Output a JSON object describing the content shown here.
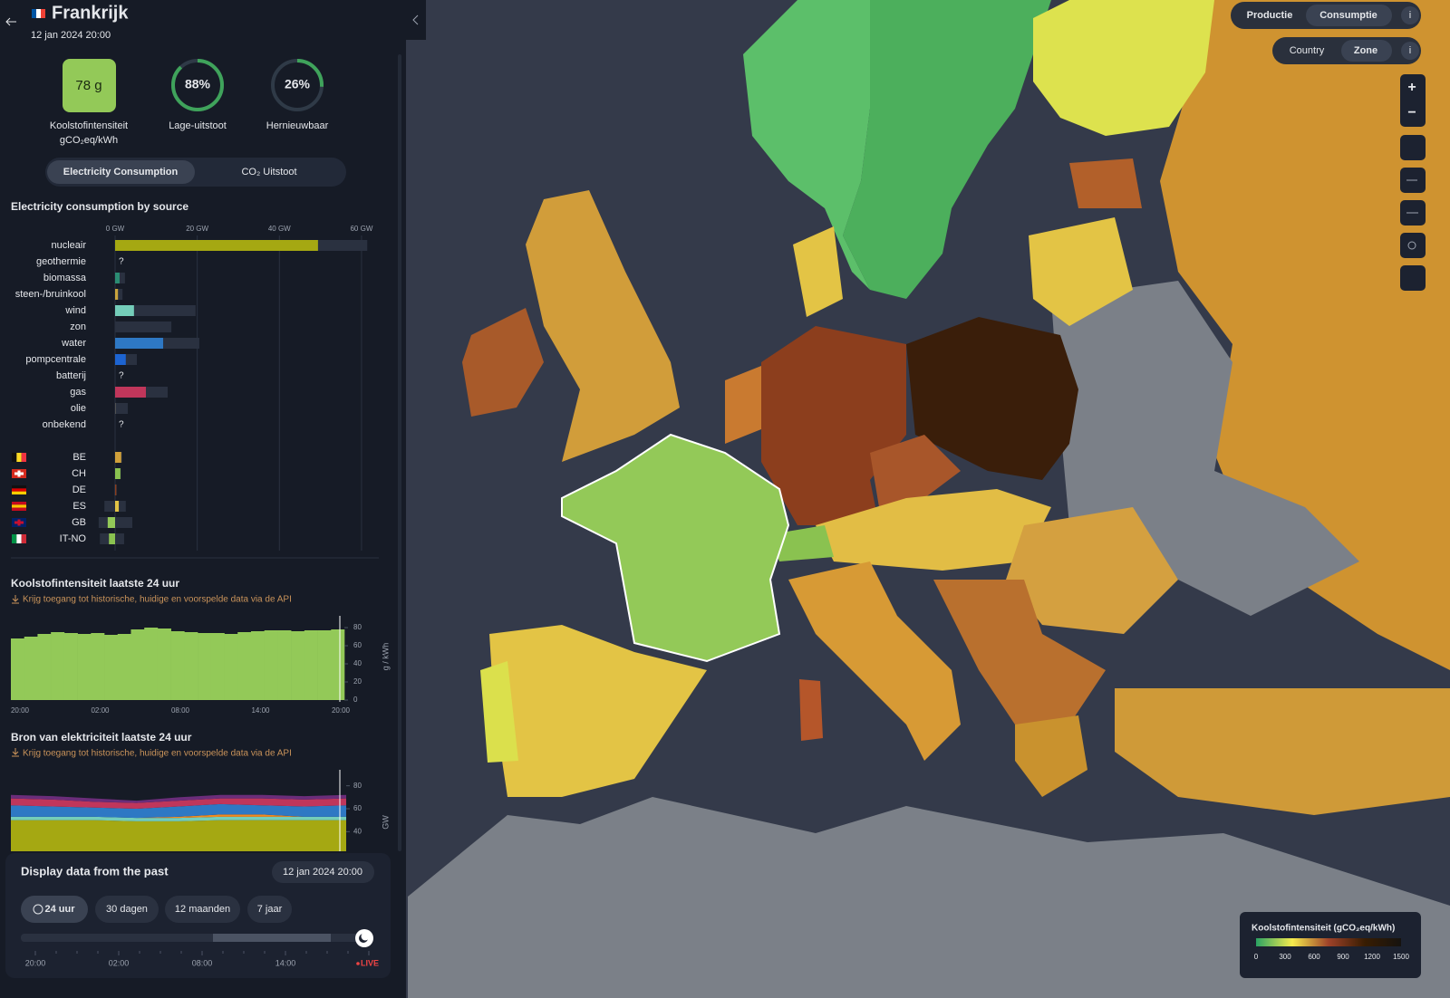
{
  "header": {
    "title": "Frankrijk",
    "datetime": "12 jan 2024 20:00"
  },
  "stats": {
    "intensity": {
      "value_label": "78 g",
      "label": "Koolstofintensiteit",
      "unit": "gCO₂eq/kWh",
      "color": "#93c958"
    },
    "rings": [
      {
        "value": 88,
        "value_label": "88%",
        "label": "Lage-uitstoot"
      },
      {
        "value": 26,
        "value_label": "26%",
        "label": "Hernieuwbaar"
      }
    ],
    "ring_color": "#3fa35b"
  },
  "tabs": [
    "Electricity Consumption",
    "CO₂ Uitstoot"
  ],
  "active_tab": 0,
  "source_chart": {
    "type": "hbar",
    "title": "Electricity consumption by source",
    "xlim": [
      0,
      62
    ],
    "xticks": [
      {
        "value": 0,
        "label": "0 GW"
      },
      {
        "value": 20,
        "label": "20 GW"
      },
      {
        "value": 40,
        "label": "40 GW"
      },
      {
        "value": 60,
        "label": "60 GW"
      }
    ],
    "categories": [
      "nucleair",
      "geothermie",
      "biomassa",
      "steen-/bruinkool",
      "wind",
      "zon",
      "water",
      "pompcentrale",
      "batterij",
      "gas",
      "olie",
      "onbekend"
    ],
    "values": [
      49.4,
      null,
      1.1,
      0.7,
      4.6,
      0,
      11.7,
      2.6,
      null,
      7.5,
      0.2,
      null
    ],
    "capacity": [
      61.4,
      null,
      2.4,
      1.8,
      19.6,
      13.7,
      20.5,
      5.3,
      null,
      12.8,
      3.1,
      null
    ],
    "value_labels": [
      null,
      "?",
      null,
      null,
      null,
      null,
      null,
      null,
      "?",
      null,
      null,
      "?"
    ],
    "colors": [
      "#a5a812",
      "#8a6d3b",
      "#2b8c73",
      "#c9a33d",
      "#74cdb9",
      "#f5b700",
      "#2e78c4",
      "#1d64d1",
      "#777777",
      "#c0365b",
      "#555555",
      "#888888"
    ],
    "exchanges": {
      "zones": [
        "BE",
        "CH",
        "DE",
        "ES",
        "GB",
        "IT-NO"
      ],
      "values": [
        1.5,
        1.3,
        0.3,
        0.9,
        -1.8,
        -1.5
      ],
      "capacity": [
        [
          0,
          1.7
        ],
        [
          0,
          1.4
        ],
        [
          -0.2,
          0.4
        ],
        [
          -2.6,
          2.6
        ],
        [
          -4,
          4.2
        ],
        [
          -3.7,
          2.2
        ]
      ],
      "colors": [
        "#d0a03a",
        "#8ac250",
        "#8c3e1d",
        "#e3c445",
        "#93c958",
        "#8ac250"
      ],
      "flags": [
        {
          "dir": "v",
          "colors": [
            "#111111",
            "#fdda24",
            "#ef3340"
          ]
        },
        {
          "dir": "cross",
          "colors": [
            "#d52b1e",
            "#ffffff"
          ]
        },
        {
          "dir": "h",
          "colors": [
            "#111111",
            "#dd0000",
            "#ffce00"
          ]
        },
        {
          "dir": "h",
          "colors": [
            "#c60b1e",
            "#ffc400",
            "#c60b1e"
          ]
        },
        {
          "dir": "cross",
          "colors": [
            "#012169",
            "#c8102e"
          ]
        },
        {
          "dir": "v",
          "colors": [
            "#009246",
            "#ffffff",
            "#ce2b37"
          ]
        }
      ]
    }
  },
  "intensity_chart": {
    "type": "steps",
    "title": "Koolstofintensiteit laatste 24 uur",
    "link": "Krijg toegang tot historische, huidige en voorspelde data via de API",
    "values": [
      68,
      70,
      73,
      75,
      74,
      73,
      74,
      72,
      73,
      78,
      80,
      79,
      76,
      75,
      74,
      74,
      73,
      75,
      76,
      77,
      77,
      76,
      77,
      77,
      78
    ],
    "color": "#93c958",
    "ylim": [
      0,
      90
    ],
    "yticks": [
      0,
      20,
      40,
      60,
      80
    ],
    "ylabel": "g / kWh",
    "xtick_labels": [
      "20:00",
      "02:00",
      "08:00",
      "14:00",
      "20:00"
    ]
  },
  "source_history": {
    "type": "stacked_area",
    "title": "Bron van elektriciteit laatste 24 uur",
    "link": "Krijg toegang tot historische, huidige en voorspelde data via de API",
    "ylim": [
      0,
      90
    ],
    "yticks": [
      40,
      60,
      80
    ],
    "ylabel": "GW",
    "series": [
      {
        "color": "#a5a812",
        "values": [
          50,
          50,
          50,
          49,
          49,
          50,
          50,
          50,
          50
        ]
      },
      {
        "color": "#74cdb9",
        "values": [
          3,
          3,
          3,
          3,
          3,
          3,
          3,
          3,
          3
        ]
      },
      {
        "color": "#f28a1e",
        "values": [
          0,
          0,
          0,
          0,
          1,
          2,
          2,
          0,
          0
        ]
      },
      {
        "color": "#2e78c4",
        "values": [
          10,
          9,
          8,
          8,
          9,
          9,
          8,
          9,
          10
        ]
      },
      {
        "color": "#c0365b",
        "values": [
          6,
          6,
          5,
          5,
          5,
          5,
          6,
          6,
          6
        ]
      },
      {
        "color": "#6b2d7a",
        "values": [
          3,
          3,
          3,
          2,
          3,
          3,
          3,
          3,
          3
        ]
      }
    ]
  },
  "time_panel": {
    "title": "Display data from the past",
    "datetime": "12 jan 2024 20:00",
    "ranges": [
      "24 uur",
      "30 dagen",
      "12 maanden",
      "7 jaar"
    ],
    "active_range": 0,
    "ticks": [
      "20:00",
      "02:00",
      "08:00",
      "14:00"
    ],
    "live": "LIVE"
  },
  "map": {
    "mode_toggle": [
      "Productie",
      "Consumptie"
    ],
    "active_mode": 1,
    "scope_toggle": [
      "Country",
      "Zone"
    ],
    "active_scope": 1,
    "info": "i",
    "zoom": [
      "+",
      "−"
    ],
    "legend": {
      "title": "Koolstofintensiteit (gCO₂eq/kWh)",
      "lim": [
        0,
        1500
      ],
      "ticks": [
        0,
        300,
        600,
        900,
        1200,
        1500
      ],
      "colors": [
        "#2aa364",
        "#f5eb4d",
        "#9e4229",
        "#381d02",
        "#16130f"
      ]
    }
  }
}
